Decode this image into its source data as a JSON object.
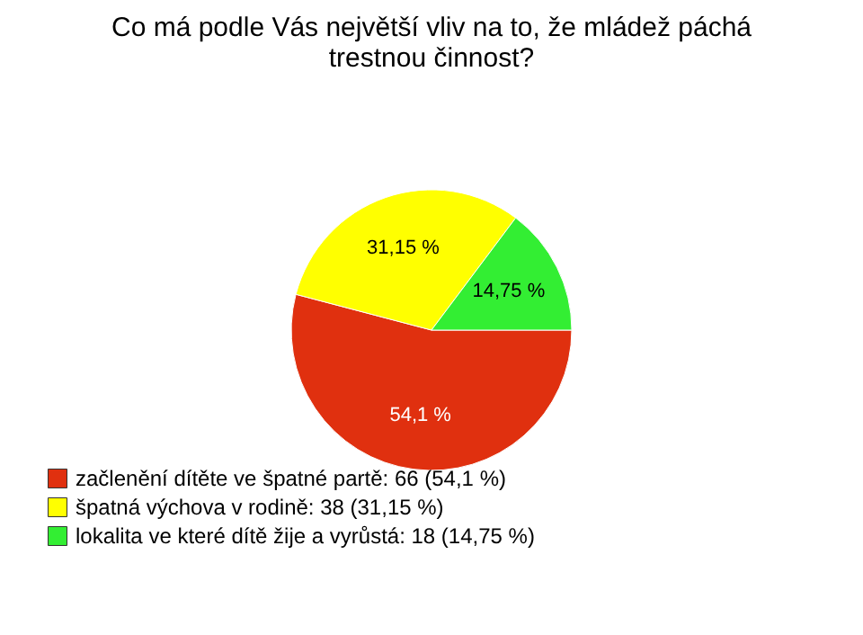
{
  "chart_data": {
    "type": "pie",
    "title": "Co má podle Vás největší vliv na to, že mládež páchá trestnou činnost?",
    "categories": [
      "začlenění dítěte ve špatné partě: 66 (54,1 %)",
      "špatná výchova v rodině: 38 (31,15 %)",
      "lokalita ve které dítě žije a vyrůstá: 18 (14,75 %)"
    ],
    "values": [
      54.1,
      31.15,
      14.75
    ],
    "colors": [
      "#e0300f",
      "#ffff00",
      "#33ee33"
    ],
    "value_labels": [
      "54,1 %",
      "31,15 %",
      "14,75 %"
    ],
    "legend": "bottom left"
  }
}
